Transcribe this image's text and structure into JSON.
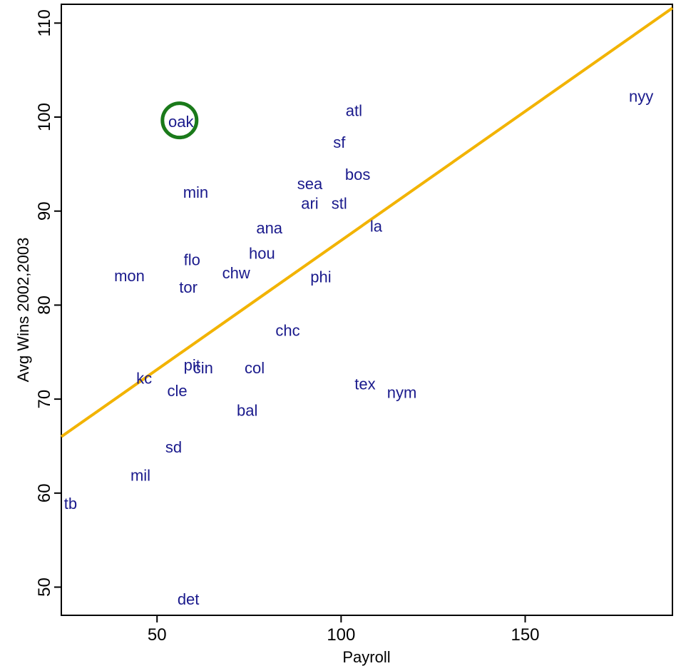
{
  "chart_data": {
    "type": "scatter",
    "title": "",
    "xlabel": "Payroll",
    "ylabel": "Avg Wins 2002,2003",
    "xlim": [
      24,
      190
    ],
    "ylim": [
      47,
      112
    ],
    "xticks": [
      50,
      100,
      150
    ],
    "yticks": [
      50,
      60,
      70,
      80,
      90,
      100,
      110
    ],
    "grid": false,
    "points": [
      {
        "label": "oak",
        "x": 56.5,
        "y": 99.5
      },
      {
        "label": "atl",
        "x": 103.5,
        "y": 100.7
      },
      {
        "label": "nyy",
        "x": 181.5,
        "y": 102.2
      },
      {
        "label": "sf",
        "x": 99.5,
        "y": 97.3
      },
      {
        "label": "bos",
        "x": 104.5,
        "y": 93.9
      },
      {
        "label": "sea",
        "x": 91.5,
        "y": 92.9
      },
      {
        "label": "min",
        "x": 60.5,
        "y": 92.0
      },
      {
        "label": "ari",
        "x": 91.5,
        "y": 90.8
      },
      {
        "label": "stl",
        "x": 99.5,
        "y": 90.8
      },
      {
        "label": "ana",
        "x": 80.5,
        "y": 88.2
      },
      {
        "label": "la",
        "x": 109.5,
        "y": 88.4
      },
      {
        "label": "hou",
        "x": 78.5,
        "y": 85.5
      },
      {
        "label": "flo",
        "x": 59.5,
        "y": 84.8
      },
      {
        "label": "chw",
        "x": 71.5,
        "y": 83.4
      },
      {
        "label": "mon",
        "x": 42.5,
        "y": 83.1
      },
      {
        "label": "phi",
        "x": 94.5,
        "y": 83.0
      },
      {
        "label": "tor",
        "x": 58.5,
        "y": 81.9
      },
      {
        "label": "chc",
        "x": 85.5,
        "y": 77.3
      },
      {
        "label": "pit",
        "x": 59.5,
        "y": 73.6
      },
      {
        "label": "cin",
        "x": 62.5,
        "y": 73.3
      },
      {
        "label": "col",
        "x": 76.5,
        "y": 73.3
      },
      {
        "label": "kc",
        "x": 46.5,
        "y": 72.2
      },
      {
        "label": "tex",
        "x": 106.5,
        "y": 71.6
      },
      {
        "label": "nym",
        "x": 116.5,
        "y": 70.7
      },
      {
        "label": "cle",
        "x": 55.5,
        "y": 70.9
      },
      {
        "label": "bal",
        "x": 74.5,
        "y": 68.8
      },
      {
        "label": "sd",
        "x": 54.5,
        "y": 64.9
      },
      {
        "label": "mil",
        "x": 45.5,
        "y": 61.9
      },
      {
        "label": "tb",
        "x": 26.5,
        "y": 58.9
      },
      {
        "label": "det",
        "x": 58.5,
        "y": 48.7
      }
    ],
    "fit_line": {
      "x": [
        24,
        190
      ],
      "y": [
        66.0,
        111.6
      ],
      "color": "#f2b300"
    },
    "highlight": {
      "label": "oak",
      "x": 56.5,
      "y": 99.5,
      "color": "#1a7a1a"
    },
    "colors": {
      "points": "#1a1a8c",
      "axes": "#000000"
    }
  }
}
